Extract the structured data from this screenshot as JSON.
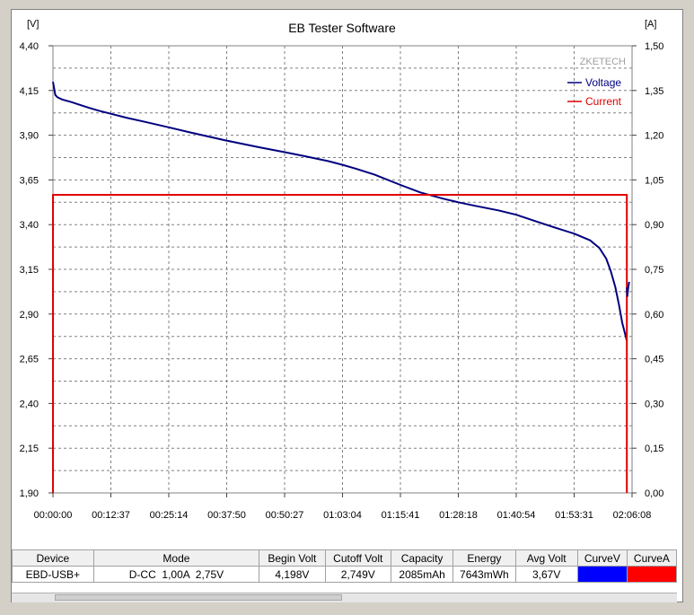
{
  "chart_data": {
    "type": "line",
    "title": "EB Tester Software",
    "watermark": "ZKETECH",
    "y_left_unit": "[V]",
    "y_right_unit": "[A]",
    "y_left_ticks": [
      "4,40",
      "4,15",
      "3,90",
      "3,65",
      "3,40",
      "3,15",
      "2,90",
      "2,65",
      "2,40",
      "2,15",
      "1,90"
    ],
    "y_right_ticks": [
      "1,50",
      "1,35",
      "1,20",
      "1,05",
      "0,90",
      "0,75",
      "0,60",
      "0,45",
      "0,30",
      "0,15",
      "0,00"
    ],
    "x_ticks": [
      "00:00:00",
      "00:12:37",
      "00:25:14",
      "00:37:50",
      "00:50:27",
      "01:03:04",
      "01:15:41",
      "01:28:18",
      "01:40:54",
      "01:53:31",
      "02:06:08"
    ],
    "ylim_left": [
      1.9,
      4.4
    ],
    "ylim_right": [
      0,
      1.5
    ],
    "xlim_minutes": [
      0,
      126.13
    ],
    "grid": true,
    "legend_position": "top-right",
    "series": [
      {
        "name": "Voltage",
        "axis": "left",
        "color": "#000080",
        "x_minutes": [
          0,
          0.5,
          1,
          2,
          4,
          6,
          8,
          10,
          12.6,
          16,
          20,
          25.2,
          30,
          37.8,
          45,
          50.5,
          55,
          60,
          63,
          66,
          70,
          75.7,
          80,
          85,
          88.3,
          92,
          97,
          100.9,
          105,
          110,
          113.5,
          117,
          119,
          120.5,
          121.5,
          122.5,
          123.3,
          124.0,
          124.5,
          124.8,
          125.0
        ],
        "values": [
          4.198,
          4.125,
          4.112,
          4.1,
          4.085,
          4.068,
          4.052,
          4.037,
          4.02,
          3.998,
          3.975,
          3.944,
          3.915,
          3.87,
          3.832,
          3.805,
          3.782,
          3.755,
          3.735,
          3.713,
          3.68,
          3.622,
          3.58,
          3.545,
          3.525,
          3.505,
          3.48,
          3.455,
          3.42,
          3.378,
          3.35,
          3.312,
          3.27,
          3.21,
          3.14,
          3.05,
          2.95,
          2.85,
          2.8,
          2.77,
          2.749
        ]
      },
      {
        "name": "Current",
        "axis": "right",
        "color": "#e00000",
        "x_minutes": [
          0,
          0,
          125.0,
          125.0
        ],
        "values": [
          0,
          1.0,
          1.0,
          0
        ]
      },
      {
        "name": "Recovery",
        "axis": "left",
        "color": "#000080",
        "legend": false,
        "x_minutes": [
          125.0,
          125.1,
          125.3,
          125.5
        ],
        "values": [
          3.05,
          3.0,
          3.05,
          3.08
        ]
      }
    ]
  },
  "table": {
    "headers": [
      "Device",
      "Mode",
      "Begin Volt",
      "Cutoff Volt",
      "Capacity",
      "Energy",
      "Avg Volt",
      "CurveV",
      "CurveA"
    ],
    "row": {
      "device": "EBD-USB+",
      "mode": "D-CC  1,00A  2,75V",
      "begin_volt": "4,198V",
      "cutoff_volt": "2,749V",
      "capacity": "2085mAh",
      "energy": "7643mWh",
      "avg_volt": "3,67V",
      "curve_v_color": "#0000ff",
      "curve_a_color": "#ff0000"
    }
  }
}
